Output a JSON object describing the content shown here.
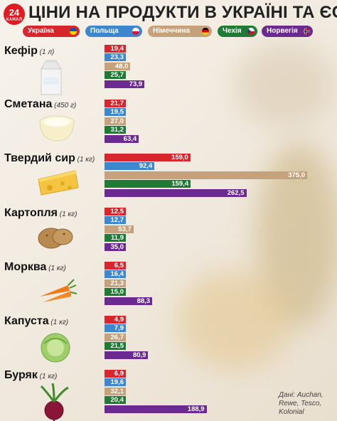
{
  "header": {
    "logo_number": "24",
    "logo_text": "КАНАЛ",
    "title": "ЦІНИ НА ПРОДУКТИ В УКРАЇНІ ТА ЄС"
  },
  "legend": [
    {
      "label": "Україна",
      "color": "#d8262f",
      "flag": "ua"
    },
    {
      "label": "Польща",
      "color": "#3d87cf",
      "flag": "pl"
    },
    {
      "label": "Німеччина",
      "color": "#c6a27c",
      "flag": "de"
    },
    {
      "label": "Чехія",
      "color": "#1f7a36",
      "flag": "cz"
    },
    {
      "label": "Норвегія",
      "color": "#6a2a90",
      "flag": "no"
    }
  ],
  "source": "Дані: Auchan, Rewe, Tesco, Kolonial",
  "chart_data": {
    "type": "bar",
    "orientation": "horizontal",
    "series_names": [
      "Україна",
      "Польща",
      "Німеччина",
      "Чехія",
      "Норвегія"
    ],
    "series_colors": [
      "#d8262f",
      "#3d87cf",
      "#c6a27c",
      "#1f7a36",
      "#6a2a90"
    ],
    "products": [
      {
        "name": "Кефір",
        "unit": "(1 л)",
        "icon": "kefir-carton-icon",
        "values": [
          "19,4",
          "23,3",
          "48,0",
          "25,7",
          "73,9"
        ],
        "nums": [
          19.4,
          23.3,
          48.0,
          25.7,
          73.9
        ]
      },
      {
        "name": "Сметана",
        "unit": "(450 г)",
        "icon": "sour-cream-bowl-icon",
        "values": [
          "21,7",
          "19,5",
          "27,0",
          "31,2",
          "63,4"
        ],
        "nums": [
          21.7,
          19.5,
          27.0,
          31.2,
          63.4
        ]
      },
      {
        "name": "Твердий сир",
        "unit": "(1 кг)",
        "icon": "cheese-icon",
        "values": [
          "159,0",
          "92,4",
          "375,0",
          "159,4",
          "262,5"
        ],
        "nums": [
          159.0,
          92.4,
          375.0,
          159.4,
          262.5
        ]
      },
      {
        "name": "Картопля",
        "unit": "(1 кг)",
        "icon": "potato-icon",
        "values": [
          "12,5",
          "12,7",
          "53,7",
          "11,9",
          "35,0"
        ],
        "nums": [
          12.5,
          12.7,
          53.7,
          11.9,
          35.0
        ]
      },
      {
        "name": "Морква",
        "unit": "(1 кг)",
        "icon": "carrot-icon",
        "values": [
          "6,5",
          "16,4",
          "21,3",
          "15,0",
          "88,3"
        ],
        "nums": [
          6.5,
          16.4,
          21.3,
          15.0,
          88.3
        ]
      },
      {
        "name": "Капуста",
        "unit": "(1 кг)",
        "icon": "cabbage-icon",
        "values": [
          "4,9",
          "7,9",
          "26,7",
          "21,5",
          "80,9"
        ],
        "nums": [
          4.9,
          7.9,
          26.7,
          21.5,
          80.9
        ]
      },
      {
        "name": "Буряк",
        "unit": "(1 кг)",
        "icon": "beet-icon",
        "values": [
          "6,9",
          "19,6",
          "32,1",
          "20,4",
          "188,9"
        ],
        "nums": [
          6.9,
          19.6,
          32.1,
          20.4,
          188.9
        ]
      }
    ]
  }
}
